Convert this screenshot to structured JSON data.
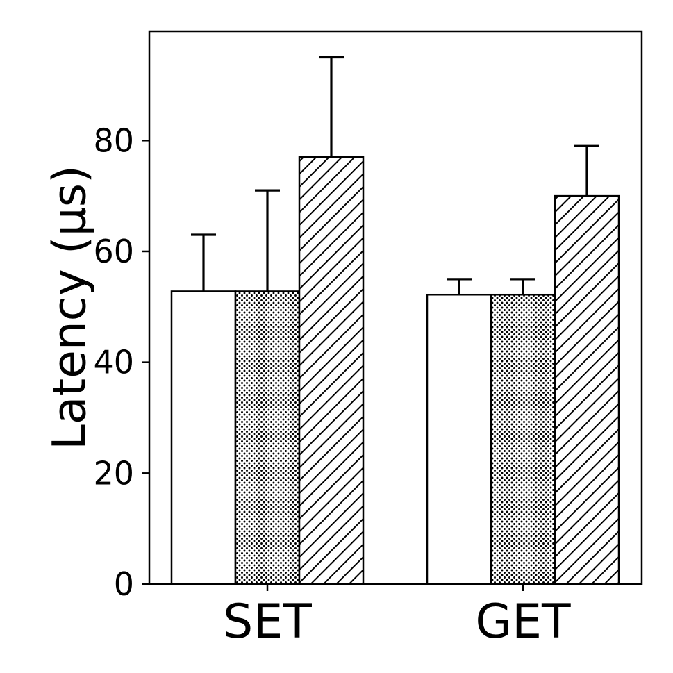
{
  "chart_data": {
    "type": "bar",
    "categories": [
      "SET",
      "GET"
    ],
    "ylabel": "Latency (μs)",
    "ylim": [
      0,
      99.7
    ],
    "yticks": [
      0,
      20,
      40,
      60,
      80
    ],
    "series": [
      {
        "values": [
          52.8,
          52.2
        ],
        "errors": [
          10.2,
          2.8
        ],
        "pattern": "none"
      },
      {
        "values": [
          52.8,
          52.2
        ],
        "errors": [
          18.2,
          2.8
        ],
        "pattern": "dots"
      },
      {
        "values": [
          77.0,
          70.0
        ],
        "errors": [
          18.0,
          9.0
        ],
        "pattern": "hatch"
      }
    ],
    "grid": false
  }
}
